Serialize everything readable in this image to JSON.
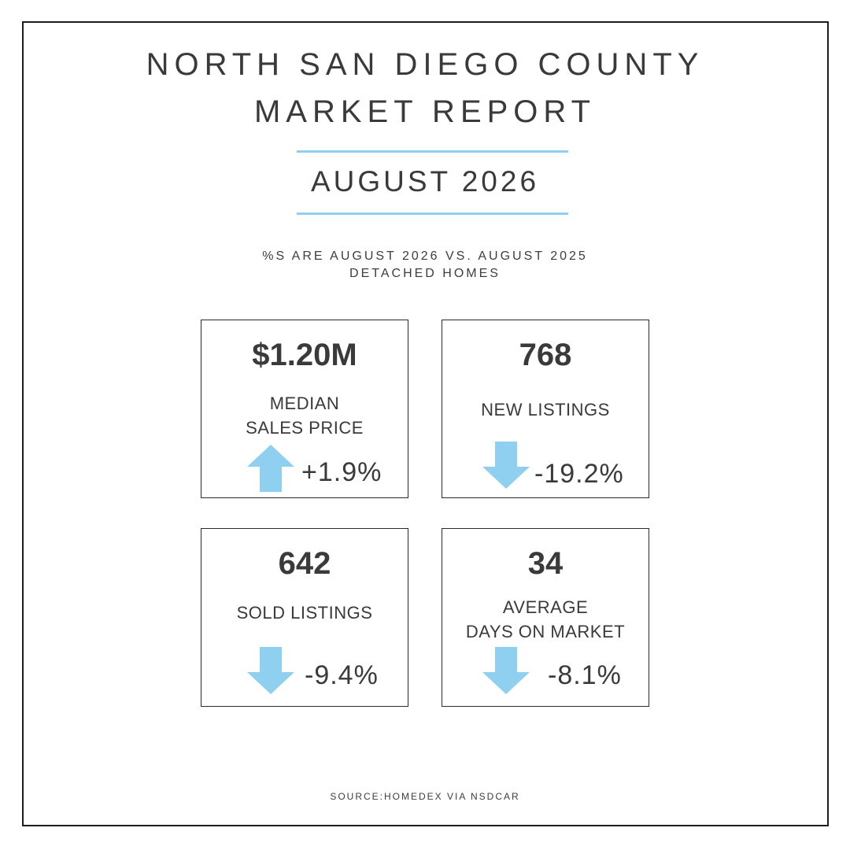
{
  "header": {
    "title_line1": "NORTH SAN DIEGO COUNTY",
    "title_line2": "MARKET REPORT",
    "period": "AUGUST 2026",
    "note_line1": "%S ARE AUGUST 2026 VS. AUGUST 2025",
    "note_line2": "DETACHED HOMES"
  },
  "accent_color": "#8fd0f0",
  "stats": [
    {
      "value": "$1.20M",
      "label_line1": "MEDIAN",
      "label_line2": "SALES PRICE",
      "direction": "up",
      "icon": "arrow-up-icon",
      "change": "+1.9%"
    },
    {
      "value": "768",
      "label_line1": "NEW LISTINGS",
      "direction": "down",
      "icon": "arrow-down-icon",
      "change": "-19.2%"
    },
    {
      "value": "642",
      "label_line1": "SOLD LISTINGS",
      "direction": "down",
      "icon": "arrow-down-icon",
      "change": "-9.4%"
    },
    {
      "value": "34",
      "label_line1": "AVERAGE",
      "label_line2": "DAYS ON MARKET",
      "direction": "down",
      "icon": "arrow-down-icon",
      "change": "-8.1%"
    }
  ],
  "footer": {
    "source": "SOURCE:HOMEDEX VIA NSDCAR"
  }
}
